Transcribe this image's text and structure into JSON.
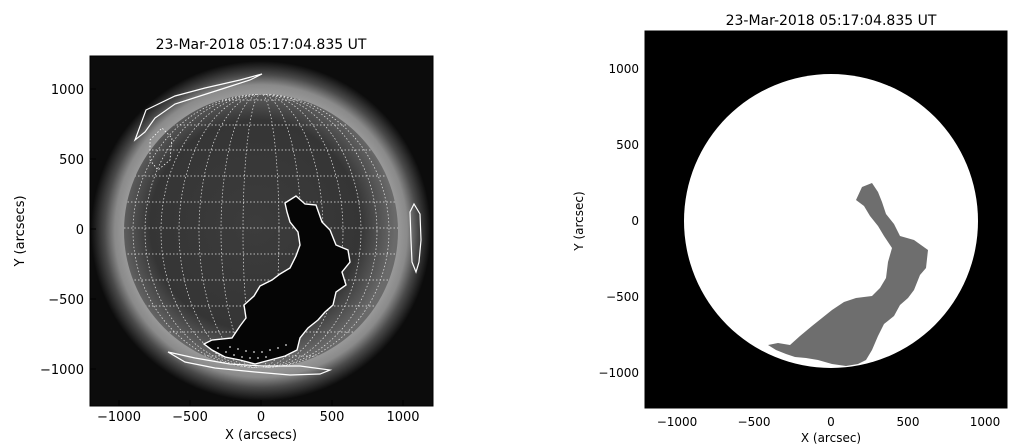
{
  "left_panel": {
    "title": "23-Mar-2018 05:17:04.835 UT",
    "xlabel": "X (arcsecs)",
    "ylabel": "Y (arcsecs)",
    "x_ticks": [
      "−1000",
      "−500",
      "0",
      "500",
      "1000"
    ],
    "y_ticks": [
      "1000",
      "500",
      "0",
      "−500",
      "−1000"
    ]
  },
  "right_panel": {
    "title": "23-Mar-2018 05:17:04.835 UT",
    "xlabel": "X (arcsec)",
    "ylabel": "Y (arcsec)",
    "x_ticks": [
      "−1000",
      "−500",
      "0",
      "500",
      "1000"
    ],
    "y_ticks": [
      "1000",
      "500",
      "0",
      "−500",
      "−1000"
    ]
  }
}
